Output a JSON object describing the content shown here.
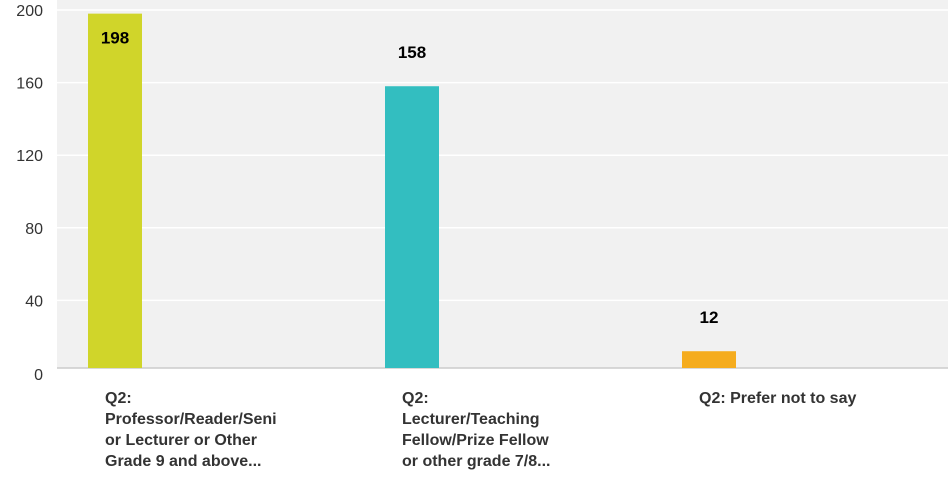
{
  "chart_data": {
    "type": "bar",
    "categories": [
      "Q2: Professor/Reader/Senior Lecturer or Other Grade 9 and above...",
      "Q2: Lecturer/Teaching Fellow/Prize Fellow or other grade 7/8...",
      "Q2: Prefer not to say"
    ],
    "category_display": [
      "Q2:\nProfessor/Reader/Seni\nor Lecturer or Other\nGrade 9 and above...",
      "Q2:\nLecturer/Teaching\nFellow/Prize Fellow\nor other grade 7/8...",
      "Q2: Prefer not to say"
    ],
    "values": [
      198,
      158,
      12
    ],
    "data_labels": [
      "198",
      "158",
      "12"
    ],
    "colors": [
      "#d0d52a",
      "#33bec0",
      "#f5ac1e"
    ],
    "yticks": [
      "0",
      "40",
      "80",
      "120",
      "160",
      "200"
    ],
    "ytick_values": [
      0,
      40,
      80,
      120,
      160,
      200
    ],
    "ylim": [
      0,
      200
    ],
    "grid": true,
    "background": "#f1f1f1",
    "title": "",
    "xlabel": "",
    "ylabel": ""
  }
}
